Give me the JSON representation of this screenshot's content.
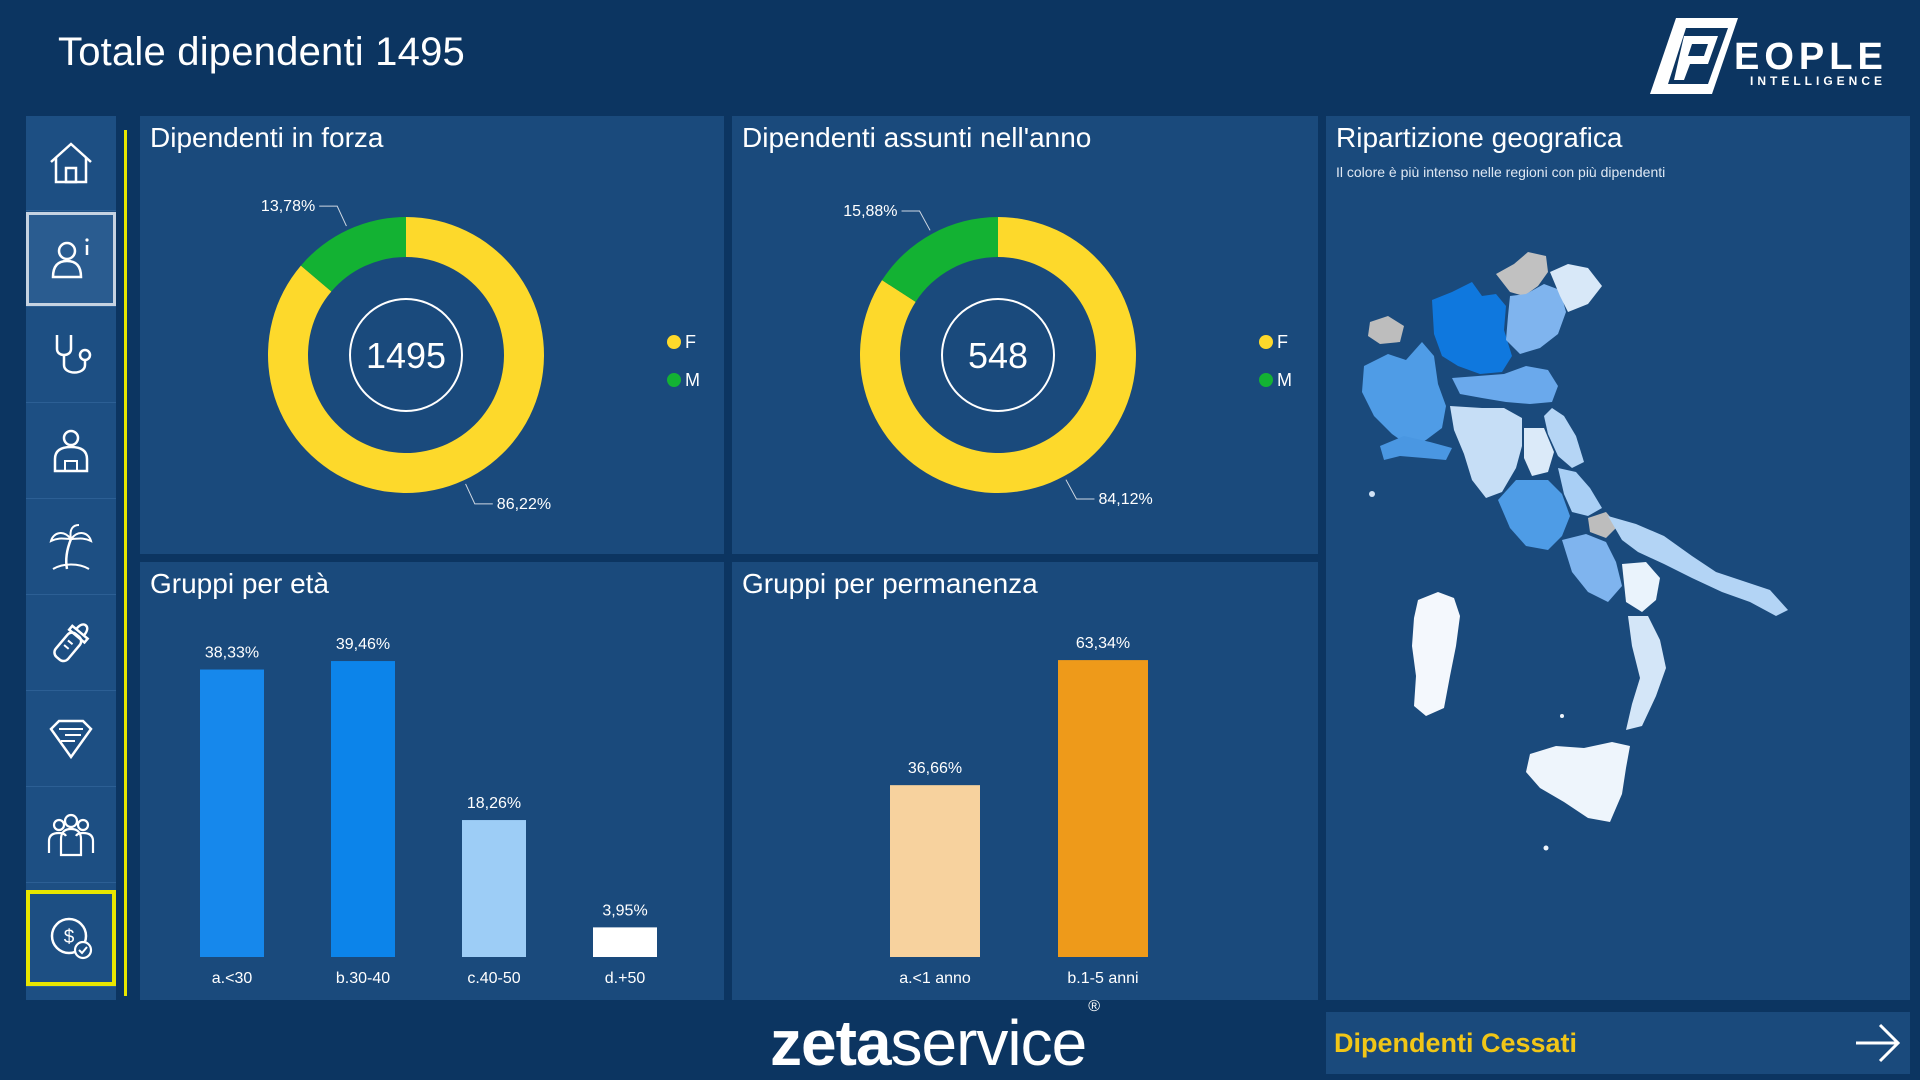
{
  "header": {
    "title": "Totale dipendenti 1495"
  },
  "logo": {
    "word": "EOPLE",
    "initial": "P",
    "sub": "INTELLIGENCE"
  },
  "sidebar": {
    "items": [
      {
        "icon": "home-icon"
      },
      {
        "icon": "user-info-icon",
        "active": true
      },
      {
        "icon": "stethoscope-icon"
      },
      {
        "icon": "worker-icon"
      },
      {
        "icon": "palm-tree-icon"
      },
      {
        "icon": "baby-bottle-icon"
      },
      {
        "icon": "superhero-icon"
      },
      {
        "icon": "team-icon"
      },
      {
        "icon": "money-check-icon",
        "current": true
      }
    ]
  },
  "panels": {
    "forza": {
      "title": "Dipendenti in forza",
      "center": "1495"
    },
    "assunti": {
      "title": "Dipendenti assunti nell'anno",
      "center": "548"
    },
    "eta": {
      "title": "Gruppi per età"
    },
    "perm": {
      "title": "Gruppi per permanenza"
    },
    "geo": {
      "title": "Ripartizione geografica",
      "subtitle": "Il colore è più intenso nelle regioni con più dipendenti"
    }
  },
  "colors": {
    "background": "#0c3561",
    "panel": "#1a4a7c",
    "female": "#fdd92b",
    "male": "#13b233",
    "accent_yellow": "#e8e600",
    "cessati": "#f1c617"
  },
  "chart_data": [
    {
      "type": "pie",
      "donut": true,
      "categories": [
        "F",
        "M"
      ],
      "values": [
        86.22,
        13.78
      ],
      "value_labels": [
        "86,22%",
        "13,78%"
      ],
      "colors": [
        "#fdd92b",
        "#13b233"
      ],
      "legend": "right"
    },
    {
      "type": "pie",
      "donut": true,
      "categories": [
        "F",
        "M"
      ],
      "values": [
        84.12,
        15.88
      ],
      "value_labels": [
        "84,12%",
        "15,88%"
      ],
      "colors": [
        "#fdd92b",
        "#13b233"
      ],
      "legend": "right"
    },
    {
      "type": "bar",
      "categories": [
        "a.<30",
        "b.30-40",
        "c.40-50",
        "d.+50"
      ],
      "values": [
        38.33,
        39.46,
        18.26,
        3.95
      ],
      "value_labels": [
        "38,33%",
        "39,46%",
        "18,26%",
        "3,95%"
      ],
      "colors": [
        "#1688ec",
        "#0c84ea",
        "#9dcdf6",
        "#ffffff"
      ],
      "ylim": [
        0,
        40
      ]
    },
    {
      "type": "bar",
      "categories": [
        "a.<1 anno",
        "b.1-5 anni"
      ],
      "values": [
        36.66,
        63.34
      ],
      "value_labels": [
        "36,66%",
        "63,34%"
      ],
      "colors": [
        "#f7d29e",
        "#ee9a1a"
      ],
      "ylim": [
        0,
        64
      ]
    }
  ],
  "footer": {
    "brand_bold": "zeta",
    "brand_thin": "service",
    "brand_mark": "®",
    "cessati_label": "Dipendenti Cessati"
  }
}
